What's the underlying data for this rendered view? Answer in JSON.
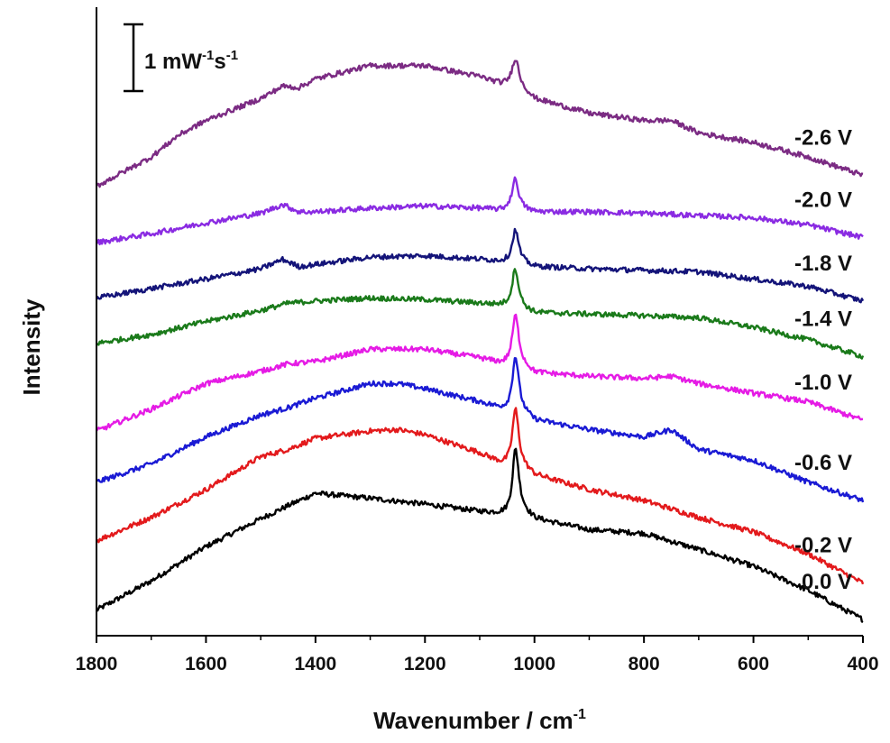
{
  "chart_data": {
    "type": "line",
    "title": "",
    "xlabel": "Wavenumber / cm",
    "xlabel_superscript": "-1",
    "ylabel": "Intensity",
    "xlim": [
      1800,
      400
    ],
    "x_reversed": true,
    "xticks": [
      1800,
      1600,
      1400,
      1200,
      1000,
      800,
      600,
      400
    ],
    "y_ticks_shown": false,
    "grid": false,
    "scale_bar": {
      "value": "1 mW",
      "exp1": "-1",
      "unit2": "s",
      "exp2": "-1"
    },
    "peak_position": 1035,
    "series": [
      {
        "name": "0.0 V",
        "color": "#000000",
        "points": [
          [
            1800,
            0.35
          ],
          [
            1700,
            0.75
          ],
          [
            1600,
            1.22
          ],
          [
            1500,
            1.6
          ],
          [
            1450,
            1.78
          ],
          [
            1400,
            1.95
          ],
          [
            1300,
            1.88
          ],
          [
            1200,
            1.8
          ],
          [
            1100,
            1.7
          ],
          [
            1060,
            1.66
          ],
          [
            1040,
            1.62
          ],
          [
            1035,
            2.55
          ],
          [
            1030,
            1.75
          ],
          [
            1000,
            1.6
          ],
          [
            900,
            1.45
          ],
          [
            800,
            1.4
          ],
          [
            700,
            1.18
          ],
          [
            600,
            0.95
          ],
          [
            500,
            0.62
          ],
          [
            400,
            0.22
          ]
        ]
      },
      {
        "name": "-0.2 V",
        "color": "#e31a1c",
        "points": [
          [
            1800,
            1.3
          ],
          [
            1700,
            1.62
          ],
          [
            1600,
            2.0
          ],
          [
            1500,
            2.45
          ],
          [
            1450,
            2.55
          ],
          [
            1400,
            2.7
          ],
          [
            1300,
            2.8
          ],
          [
            1250,
            2.82
          ],
          [
            1200,
            2.75
          ],
          [
            1100,
            2.5
          ],
          [
            1060,
            2.35
          ],
          [
            1040,
            2.3
          ],
          [
            1035,
            3.1
          ],
          [
            1030,
            2.35
          ],
          [
            1000,
            2.2
          ],
          [
            900,
            2.0
          ],
          [
            800,
            1.85
          ],
          [
            700,
            1.62
          ],
          [
            600,
            1.42
          ],
          [
            500,
            1.12
          ],
          [
            400,
            0.72
          ]
        ]
      },
      {
        "name": "-0.6 V",
        "color": "#1a1ad4",
        "points": [
          [
            1800,
            2.1
          ],
          [
            1700,
            2.35
          ],
          [
            1600,
            2.72
          ],
          [
            1500,
            3.02
          ],
          [
            1450,
            3.12
          ],
          [
            1400,
            3.25
          ],
          [
            1300,
            3.45
          ],
          [
            1250,
            3.45
          ],
          [
            1200,
            3.38
          ],
          [
            1100,
            3.2
          ],
          [
            1060,
            3.1
          ],
          [
            1040,
            3.05
          ],
          [
            1035,
            3.82
          ],
          [
            1030,
            3.1
          ],
          [
            1000,
            2.95
          ],
          [
            900,
            2.82
          ],
          [
            800,
            2.72
          ],
          [
            750,
            2.82
          ],
          [
            700,
            2.55
          ],
          [
            600,
            2.4
          ],
          [
            500,
            2.1
          ],
          [
            400,
            1.85
          ]
        ]
      },
      {
        "name": "-1.0 V",
        "color": "#e51be5",
        "points": [
          [
            1800,
            2.8
          ],
          [
            1700,
            3.1
          ],
          [
            1600,
            3.45
          ],
          [
            1500,
            3.62
          ],
          [
            1450,
            3.72
          ],
          [
            1400,
            3.75
          ],
          [
            1300,
            3.92
          ],
          [
            1200,
            3.92
          ],
          [
            1100,
            3.8
          ],
          [
            1060,
            3.72
          ],
          [
            1040,
            3.7
          ],
          [
            1035,
            4.38
          ],
          [
            1030,
            3.75
          ],
          [
            1000,
            3.6
          ],
          [
            900,
            3.55
          ],
          [
            800,
            3.52
          ],
          [
            750,
            3.55
          ],
          [
            700,
            3.45
          ],
          [
            600,
            3.32
          ],
          [
            500,
            3.2
          ],
          [
            400,
            2.95
          ]
        ]
      },
      {
        "name": "-1.4 V",
        "color": "#1a7a1a",
        "points": [
          [
            1800,
            4.0
          ],
          [
            1700,
            4.12
          ],
          [
            1600,
            4.3
          ],
          [
            1500,
            4.45
          ],
          [
            1450,
            4.55
          ],
          [
            1400,
            4.58
          ],
          [
            1300,
            4.62
          ],
          [
            1200,
            4.6
          ],
          [
            1100,
            4.55
          ],
          [
            1060,
            4.52
          ],
          [
            1040,
            4.5
          ],
          [
            1035,
            5.02
          ],
          [
            1030,
            4.5
          ],
          [
            1000,
            4.42
          ],
          [
            900,
            4.4
          ],
          [
            800,
            4.38
          ],
          [
            700,
            4.35
          ],
          [
            600,
            4.22
          ],
          [
            500,
            4.05
          ],
          [
            400,
            3.82
          ]
        ]
      },
      {
        "name": "-1.8 V",
        "color": "#141479",
        "points": [
          [
            1800,
            4.62
          ],
          [
            1700,
            4.75
          ],
          [
            1600,
            4.88
          ],
          [
            1500,
            5.02
          ],
          [
            1460,
            5.15
          ],
          [
            1430,
            5.05
          ],
          [
            1400,
            5.08
          ],
          [
            1300,
            5.18
          ],
          [
            1200,
            5.2
          ],
          [
            1100,
            5.15
          ],
          [
            1060,
            5.12
          ],
          [
            1040,
            5.1
          ],
          [
            1035,
            5.55
          ],
          [
            1030,
            5.12
          ],
          [
            1000,
            5.05
          ],
          [
            900,
            5.02
          ],
          [
            800,
            5.0
          ],
          [
            700,
            4.98
          ],
          [
            600,
            4.88
          ],
          [
            500,
            4.78
          ],
          [
            400,
            4.58
          ]
        ]
      },
      {
        "name": "-2.0 V",
        "color": "#8a2be2",
        "points": [
          [
            1800,
            5.38
          ],
          [
            1700,
            5.5
          ],
          [
            1600,
            5.65
          ],
          [
            1500,
            5.78
          ],
          [
            1460,
            5.9
          ],
          [
            1430,
            5.8
          ],
          [
            1400,
            5.8
          ],
          [
            1300,
            5.85
          ],
          [
            1200,
            5.88
          ],
          [
            1100,
            5.85
          ],
          [
            1060,
            5.82
          ],
          [
            1040,
            5.85
          ],
          [
            1035,
            6.25
          ],
          [
            1030,
            5.85
          ],
          [
            1000,
            5.8
          ],
          [
            900,
            5.8
          ],
          [
            800,
            5.78
          ],
          [
            700,
            5.75
          ],
          [
            600,
            5.72
          ],
          [
            500,
            5.62
          ],
          [
            400,
            5.45
          ]
        ]
      },
      {
        "name": "-2.6 V",
        "color": "#7b2b83",
        "points": [
          [
            1800,
            6.15
          ],
          [
            1700,
            6.55
          ],
          [
            1650,
            6.85
          ],
          [
            1600,
            7.05
          ],
          [
            1500,
            7.35
          ],
          [
            1460,
            7.52
          ],
          [
            1430,
            7.5
          ],
          [
            1400,
            7.62
          ],
          [
            1300,
            7.8
          ],
          [
            1200,
            7.8
          ],
          [
            1100,
            7.65
          ],
          [
            1060,
            7.55
          ],
          [
            1040,
            7.55
          ],
          [
            1035,
            7.9
          ],
          [
            1030,
            7.55
          ],
          [
            1000,
            7.35
          ],
          [
            900,
            7.15
          ],
          [
            800,
            7.05
          ],
          [
            750,
            7.05
          ],
          [
            700,
            6.88
          ],
          [
            600,
            6.75
          ],
          [
            500,
            6.55
          ],
          [
            400,
            6.3
          ]
        ]
      }
    ]
  }
}
